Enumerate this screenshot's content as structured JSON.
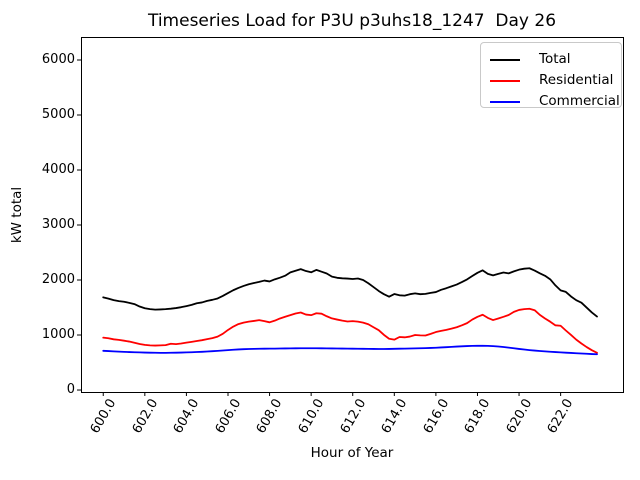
{
  "title": "Timeseries Load for P3U p3uhs18_1247  Day 26",
  "chart_data": {
    "type": "line",
    "title": "Timeseries Load for P3U p3uhs18_1247  Day 26",
    "xlabel": "Hour of Year",
    "ylabel": "kW total",
    "grid": false,
    "legend_position": "upper right",
    "xlim": [
      598.93,
      625.0
    ],
    "ylim": [
      -36,
      6418
    ],
    "xticks": [
      600,
      602,
      604,
      606,
      608,
      610,
      612,
      614,
      616,
      618,
      620,
      622
    ],
    "xtick_labels": [
      "600.0",
      "602.0",
      "604.0",
      "606.0",
      "608.0",
      "610.0",
      "612.0",
      "614.0",
      "616.0",
      "618.0",
      "620.0",
      "622.0"
    ],
    "yticks": [
      0,
      1000,
      2000,
      3000,
      4000,
      5000,
      6000
    ],
    "ytick_labels": [
      "0",
      "1000",
      "2000",
      "3000",
      "4000",
      "5000",
      "6000"
    ],
    "x": [
      600.0,
      600.25,
      600.5,
      600.75,
      601.0,
      601.25,
      601.5,
      601.75,
      602.0,
      602.25,
      602.5,
      602.75,
      603.0,
      603.25,
      603.5,
      603.75,
      604.0,
      604.25,
      604.5,
      604.75,
      605.0,
      605.25,
      605.5,
      605.75,
      606.0,
      606.25,
      606.5,
      606.75,
      607.0,
      607.25,
      607.5,
      607.75,
      608.0,
      608.25,
      608.5,
      608.75,
      609.0,
      609.25,
      609.5,
      609.75,
      610.0,
      610.25,
      610.5,
      610.75,
      611.0,
      611.25,
      611.5,
      611.75,
      612.0,
      612.25,
      612.5,
      612.75,
      613.0,
      613.25,
      613.5,
      613.75,
      614.0,
      614.25,
      614.5,
      614.75,
      615.0,
      615.25,
      615.5,
      615.75,
      616.0,
      616.25,
      616.5,
      616.75,
      617.0,
      617.25,
      617.5,
      617.75,
      618.0,
      618.25,
      618.5,
      618.75,
      619.0,
      619.25,
      619.5,
      619.75,
      620.0,
      620.25,
      620.5,
      620.75,
      621.0,
      621.25,
      621.5,
      621.75,
      622.0,
      622.25,
      622.5,
      622.75,
      623.0,
      623.25,
      623.5,
      623.75
    ],
    "series": [
      {
        "name": "Total",
        "color": "#000000",
        "values": [
          1685,
          1662,
          1634,
          1617,
          1604,
          1585,
          1562,
          1518,
          1487,
          1470,
          1461,
          1465,
          1470,
          1479,
          1490,
          1506,
          1526,
          1548,
          1577,
          1592,
          1621,
          1640,
          1664,
          1710,
          1762,
          1814,
          1856,
          1892,
          1923,
          1945,
          1966,
          1990,
          1974,
          2012,
          2042,
          2078,
          2138,
          2168,
          2198,
          2163,
          2140,
          2184,
          2151,
          2118,
          2062,
          2040,
          2031,
          2026,
          2019,
          2028,
          2001,
          1941,
          1872,
          1801,
          1742,
          1697,
          1745,
          1722,
          1716,
          1742,
          1757,
          1742,
          1748,
          1766,
          1781,
          1822,
          1851,
          1884,
          1917,
          1962,
          2011,
          2072,
          2131,
          2176,
          2112,
          2085,
          2112,
          2136,
          2121,
          2157,
          2188,
          2206,
          2214,
          2172,
          2122,
          2077,
          2012,
          1902,
          1812,
          1784,
          1701,
          1633,
          1588,
          1499,
          1411,
          1336
        ]
      },
      {
        "name": "Residential",
        "color": "#ff0000",
        "values": [
          952,
          941,
          922,
          912,
          897,
          881,
          859,
          836,
          821,
          812,
          808,
          812,
          816,
          841,
          834,
          846,
          861,
          876,
          891,
          906,
          926,
          944,
          971,
          1022,
          1092,
          1152,
          1198,
          1226,
          1243,
          1256,
          1271,
          1252,
          1231,
          1261,
          1301,
          1332,
          1361,
          1391,
          1409,
          1372,
          1361,
          1396,
          1388,
          1341,
          1302,
          1281,
          1261,
          1246,
          1252,
          1244,
          1226,
          1196,
          1141,
          1088,
          1003,
          932,
          916,
          964,
          958,
          972,
          1001,
          994,
          991,
          1021,
          1054,
          1076,
          1094,
          1116,
          1141,
          1176,
          1216,
          1281,
          1331,
          1368,
          1311,
          1272,
          1301,
          1331,
          1364,
          1421,
          1456,
          1471,
          1477,
          1451,
          1366,
          1301,
          1242,
          1176,
          1168,
          1082,
          1001,
          916,
          846,
          781,
          724,
          676
        ]
      },
      {
        "name": "Commercial",
        "color": "#0000ff",
        "values": [
          713,
          708,
          703,
          698,
          694,
          690,
          687,
          684,
          681,
          679,
          677,
          676,
          676,
          677,
          679,
          681,
          684,
          687,
          691,
          695,
          700,
          706,
          712,
          719,
          726,
          732,
          738,
          742,
          746,
          748,
          750,
          751,
          752,
          753,
          755,
          756,
          757,
          758,
          759,
          760,
          760,
          759,
          758,
          757,
          756,
          755,
          754,
          753,
          751,
          750,
          749,
          748,
          747,
          746,
          746,
          747,
          749,
          751,
          753,
          755,
          757,
          759,
          762,
          765,
          769,
          774,
          779,
          785,
          790,
          795,
          799,
          802,
          804,
          805,
          803,
          798,
          791,
          782,
          771,
          759,
          747,
          736,
          726,
          717,
          709,
          702,
          696,
          690,
          684,
          679,
          674,
          669,
          664,
          659,
          654,
          650
        ]
      }
    ]
  }
}
